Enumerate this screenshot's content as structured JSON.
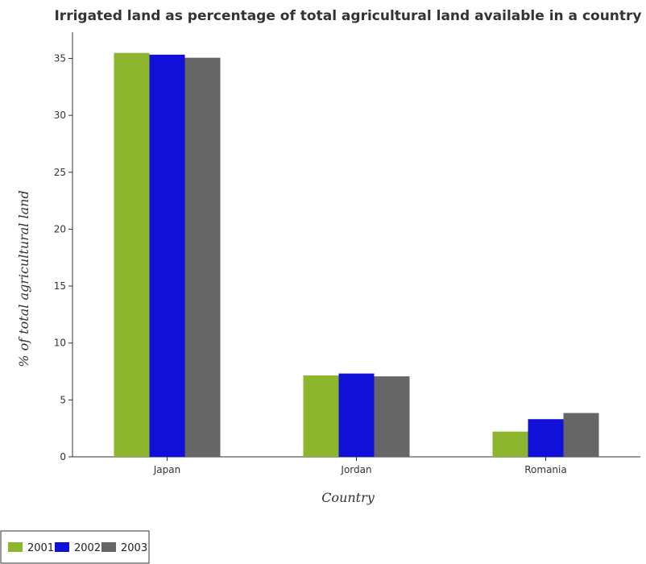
{
  "chart_data": {
    "type": "bar",
    "title": "Irrigated land as percentage of total agricultural land available in a country",
    "xlabel": "Country",
    "ylabel": "% of total agricultural land",
    "categories": [
      "Japan",
      "Jordan",
      "Romania"
    ],
    "series": [
      {
        "name": "2001",
        "color": "#8db52e",
        "values": [
          35.48,
          7.15,
          2.22
        ]
      },
      {
        "name": "2002",
        "color": "#1010d8",
        "values": [
          35.33,
          7.32,
          3.31
        ]
      },
      {
        "name": "2003",
        "color": "#666666",
        "values": [
          35.06,
          7.07,
          3.85
        ]
      }
    ],
    "yticks": [
      0,
      5,
      10,
      15,
      20,
      25,
      30,
      35
    ],
    "ylim": [
      0,
      37.3
    ],
    "grid": false,
    "legend_position": "bottom-left"
  }
}
